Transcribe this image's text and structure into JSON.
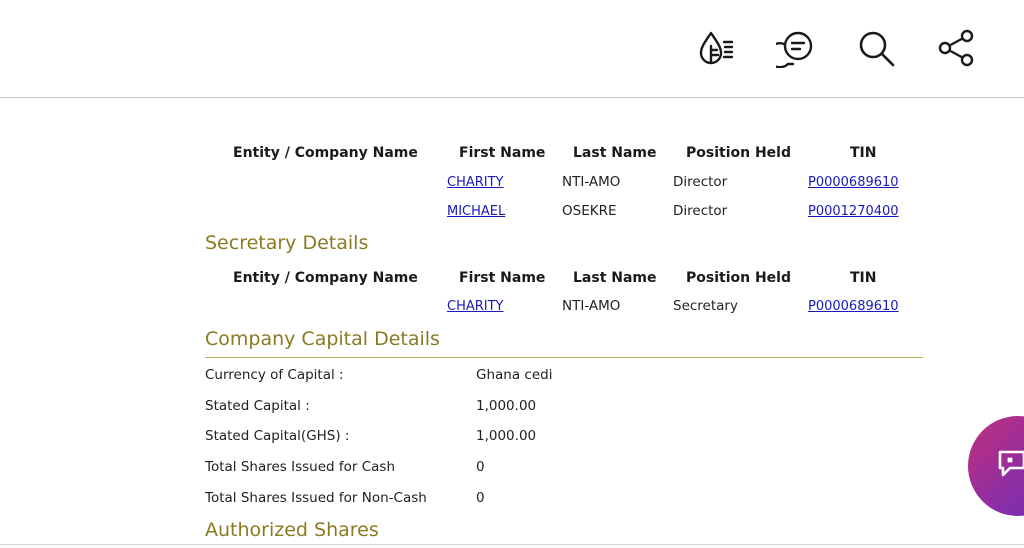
{
  "toolbar": {
    "icons": [
      "reader-mode-icon",
      "comments-icon",
      "search-icon",
      "share-icon"
    ]
  },
  "directors": {
    "headers": [
      "Entity / Company Name",
      "First Name",
      "Last Name",
      "Position Held",
      "TIN"
    ],
    "rows": [
      {
        "entity": "",
        "first_name": "CHARITY",
        "last_name": "NTI-AMO",
        "position": "Director",
        "tin": "P0000689610"
      },
      {
        "entity": "",
        "first_name": "MICHAEL",
        "last_name": "OSEKRE",
        "position": "Director",
        "tin": "P0001270400"
      }
    ]
  },
  "secretary": {
    "title": "Secretary Details",
    "headers": [
      "Entity / Company Name",
      "First Name",
      "Last Name",
      "Position Held",
      "TIN"
    ],
    "rows": [
      {
        "entity": "",
        "first_name": "CHARITY",
        "last_name": "NTI-AMO",
        "position": "Secretary",
        "tin": "P0000689610"
      }
    ]
  },
  "capital": {
    "title": "Company Capital Details",
    "fields": [
      {
        "label": "Currency of Capital :",
        "value": "Ghana cedi"
      },
      {
        "label": "Stated Capital :",
        "value": "1,000.00"
      },
      {
        "label": "Stated Capital(GHS) :",
        "value": "1,000.00"
      },
      {
        "label": "Total Shares Issued for Cash",
        "value": "0"
      },
      {
        "label": "Total Shares Issued for Non-Cash",
        "value": "0"
      }
    ]
  },
  "authorized": {
    "title": "Authorized Shares"
  },
  "colors": {
    "section_title": "#8a7a22",
    "link": "#1a1ab8",
    "fab_start": "#c2307a",
    "fab_end": "#6a2fb8"
  }
}
